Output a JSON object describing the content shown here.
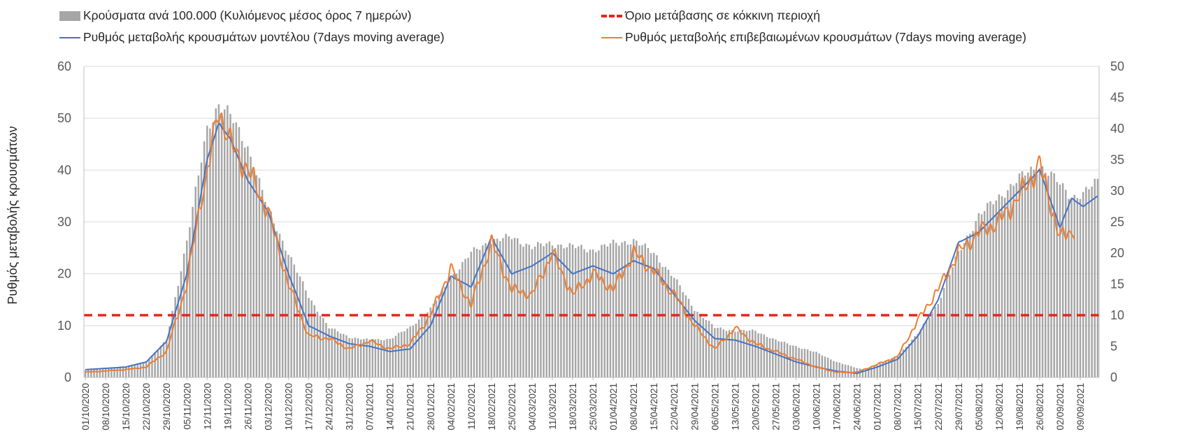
{
  "chart_data": {
    "type": "bar+line",
    "ylabel": "Ρυθμός μεταβολής κρουσμάτων",
    "y_left_lim": [
      0,
      60
    ],
    "y_left_ticks": [
      0,
      10,
      20,
      30,
      40,
      50,
      60
    ],
    "y_right_lim": [
      0,
      50
    ],
    "y_right_ticks": [
      0,
      5,
      10,
      15,
      20,
      25,
      30,
      35,
      40,
      45,
      50
    ],
    "grid": "horizontal",
    "legend_position": "top",
    "start_date": "01/10/2020",
    "x_tick_labels": [
      "01/10/2020",
      "08/10/2020",
      "15/10/2020",
      "22/10/2020",
      "29/10/2020",
      "05/11/2020",
      "12/11/2020",
      "19/11/2020",
      "26/11/2020",
      "03/12/2020",
      "10/12/2020",
      "17/12/2020",
      "24/12/2020",
      "31/12/2020",
      "07/01/2021",
      "14/01/2021",
      "21/01/2021",
      "28/01/2021",
      "04/02/2021",
      "11/02/2021",
      "18/02/2021",
      "25/02/2021",
      "04/03/2021",
      "11/03/2021",
      "18/03/2021",
      "25/03/2021",
      "01/04/2021",
      "08/04/2021",
      "15/04/2021",
      "22/04/2021",
      "29/04/2021",
      "06/05/2021",
      "13/05/2021",
      "20/05/2021",
      "27/05/2021",
      "03/06/2021",
      "10/06/2021",
      "17/06/2021",
      "24/06/2021",
      "01/07/2021",
      "08/07/2021",
      "15/07/2021",
      "22/07/2021",
      "29/07/2021",
      "05/08/2021",
      "12/08/2021",
      "19/08/2021",
      "26/08/2021",
      "02/09/2021",
      "09/09/2021"
    ],
    "series": [
      {
        "name": "Κρούσματα ανά 100.000 (Κυλιόμενος μέσος όρος 7 ημερών)",
        "kind": "bar",
        "axis": "right",
        "color": "#a6a6a6",
        "keypoints": [
          [
            0,
            1.2
          ],
          [
            14,
            1.8
          ],
          [
            21,
            2.5
          ],
          [
            28,
            6
          ],
          [
            35,
            22
          ],
          [
            42,
            40
          ],
          [
            46,
            44
          ],
          [
            50,
            42
          ],
          [
            56,
            37
          ],
          [
            63,
            27
          ],
          [
            70,
            20
          ],
          [
            77,
            13
          ],
          [
            84,
            8
          ],
          [
            91,
            6.5
          ],
          [
            98,
            6
          ],
          [
            105,
            6.2
          ],
          [
            112,
            8
          ],
          [
            119,
            11
          ],
          [
            126,
            16
          ],
          [
            133,
            20
          ],
          [
            140,
            22
          ],
          [
            147,
            22.5
          ],
          [
            154,
            21
          ],
          [
            161,
            21.5
          ],
          [
            168,
            21
          ],
          [
            175,
            20.5
          ],
          [
            182,
            21.5
          ],
          [
            189,
            22
          ],
          [
            196,
            20
          ],
          [
            203,
            16
          ],
          [
            210,
            11
          ],
          [
            217,
            8
          ],
          [
            224,
            7.5
          ],
          [
            231,
            7.5
          ],
          [
            238,
            6
          ],
          [
            245,
            5
          ],
          [
            252,
            4
          ],
          [
            259,
            2.5
          ],
          [
            266,
            1.5
          ],
          [
            269,
            1.2
          ],
          [
            273,
            2
          ],
          [
            280,
            3.5
          ],
          [
            287,
            7
          ],
          [
            294,
            12
          ],
          [
            301,
            20
          ],
          [
            308,
            26
          ],
          [
            315,
            29
          ],
          [
            322,
            32
          ],
          [
            325,
            33
          ],
          [
            329,
            34
          ],
          [
            332,
            33
          ],
          [
            336,
            31
          ],
          [
            340,
            29
          ],
          [
            344,
            29.5
          ],
          [
            349,
            31.5
          ]
        ]
      },
      {
        "name": "Ρυθμός μεταβολής κρουσμάτων μοντέλου (7days moving average)",
        "kind": "line",
        "axis": "left",
        "color": "#4472c4",
        "keypoints": [
          [
            0,
            1.5
          ],
          [
            14,
            2
          ],
          [
            21,
            3
          ],
          [
            28,
            7
          ],
          [
            35,
            20
          ],
          [
            42,
            42
          ],
          [
            46,
            49
          ],
          [
            50,
            46
          ],
          [
            56,
            38
          ],
          [
            63,
            32
          ],
          [
            70,
            20
          ],
          [
            77,
            10
          ],
          [
            84,
            8
          ],
          [
            91,
            6.5
          ],
          [
            98,
            6
          ],
          [
            105,
            5
          ],
          [
            112,
            5.5
          ],
          [
            119,
            10
          ],
          [
            126,
            19.5
          ],
          [
            133,
            17.5
          ],
          [
            140,
            27
          ],
          [
            147,
            20
          ],
          [
            154,
            21.5
          ],
          [
            161,
            24
          ],
          [
            168,
            20
          ],
          [
            175,
            21.5
          ],
          [
            182,
            20
          ],
          [
            189,
            22.5
          ],
          [
            196,
            21
          ],
          [
            203,
            16
          ],
          [
            210,
            11
          ],
          [
            217,
            7.5
          ],
          [
            224,
            7.2
          ],
          [
            231,
            6
          ],
          [
            238,
            4.5
          ],
          [
            245,
            3
          ],
          [
            252,
            2
          ],
          [
            259,
            1.2
          ],
          [
            266,
            0.8
          ],
          [
            273,
            2
          ],
          [
            280,
            3.5
          ],
          [
            287,
            8
          ],
          [
            294,
            15
          ],
          [
            301,
            26
          ],
          [
            308,
            28
          ],
          [
            315,
            32
          ],
          [
            322,
            36
          ],
          [
            329,
            40
          ],
          [
            336,
            29
          ],
          [
            340,
            34.5
          ],
          [
            344,
            33
          ],
          [
            349,
            35
          ]
        ]
      },
      {
        "name": "Ρυθμός μεταβολής επιβεβαιωμένων κρουσμάτων (7days moving average)",
        "kind": "line",
        "axis": "left",
        "color": "#ed7d31",
        "keypoints": [
          [
            0,
            1
          ],
          [
            14,
            1.5
          ],
          [
            21,
            2
          ],
          [
            28,
            5
          ],
          [
            35,
            18
          ],
          [
            40,
            35
          ],
          [
            42,
            39
          ],
          [
            46,
            52
          ],
          [
            50,
            45
          ],
          [
            56,
            40
          ],
          [
            63,
            32
          ],
          [
            70,
            18
          ],
          [
            77,
            8
          ],
          [
            84,
            7.5
          ],
          [
            91,
            5.5
          ],
          [
            98,
            7
          ],
          [
            105,
            5.5
          ],
          [
            112,
            6.5
          ],
          [
            119,
            12
          ],
          [
            126,
            21
          ],
          [
            133,
            14
          ],
          [
            140,
            26
          ],
          [
            147,
            17
          ],
          [
            154,
            16
          ],
          [
            161,
            24
          ],
          [
            168,
            16
          ],
          [
            175,
            20
          ],
          [
            182,
            17
          ],
          [
            189,
            24
          ],
          [
            196,
            20.5
          ],
          [
            203,
            16
          ],
          [
            210,
            10
          ],
          [
            217,
            5.5
          ],
          [
            224,
            9.5
          ],
          [
            231,
            6.5
          ],
          [
            238,
            5
          ],
          [
            245,
            3.5
          ],
          [
            252,
            2
          ],
          [
            259,
            1
          ],
          [
            266,
            1
          ],
          [
            273,
            2.5
          ],
          [
            280,
            4
          ],
          [
            287,
            11
          ],
          [
            294,
            17
          ],
          [
            301,
            24
          ],
          [
            308,
            28
          ],
          [
            315,
            30
          ],
          [
            322,
            35
          ],
          [
            329,
            41
          ],
          [
            336,
            27
          ],
          [
            338,
            27.5
          ],
          [
            341,
            28.5
          ]
        ]
      },
      {
        "name": "Όριο μετάβασης σε κόκκινη περιοχή",
        "kind": "hline",
        "axis": "right",
        "value": 10,
        "color": "#e8241a",
        "style": "dashed"
      }
    ]
  }
}
